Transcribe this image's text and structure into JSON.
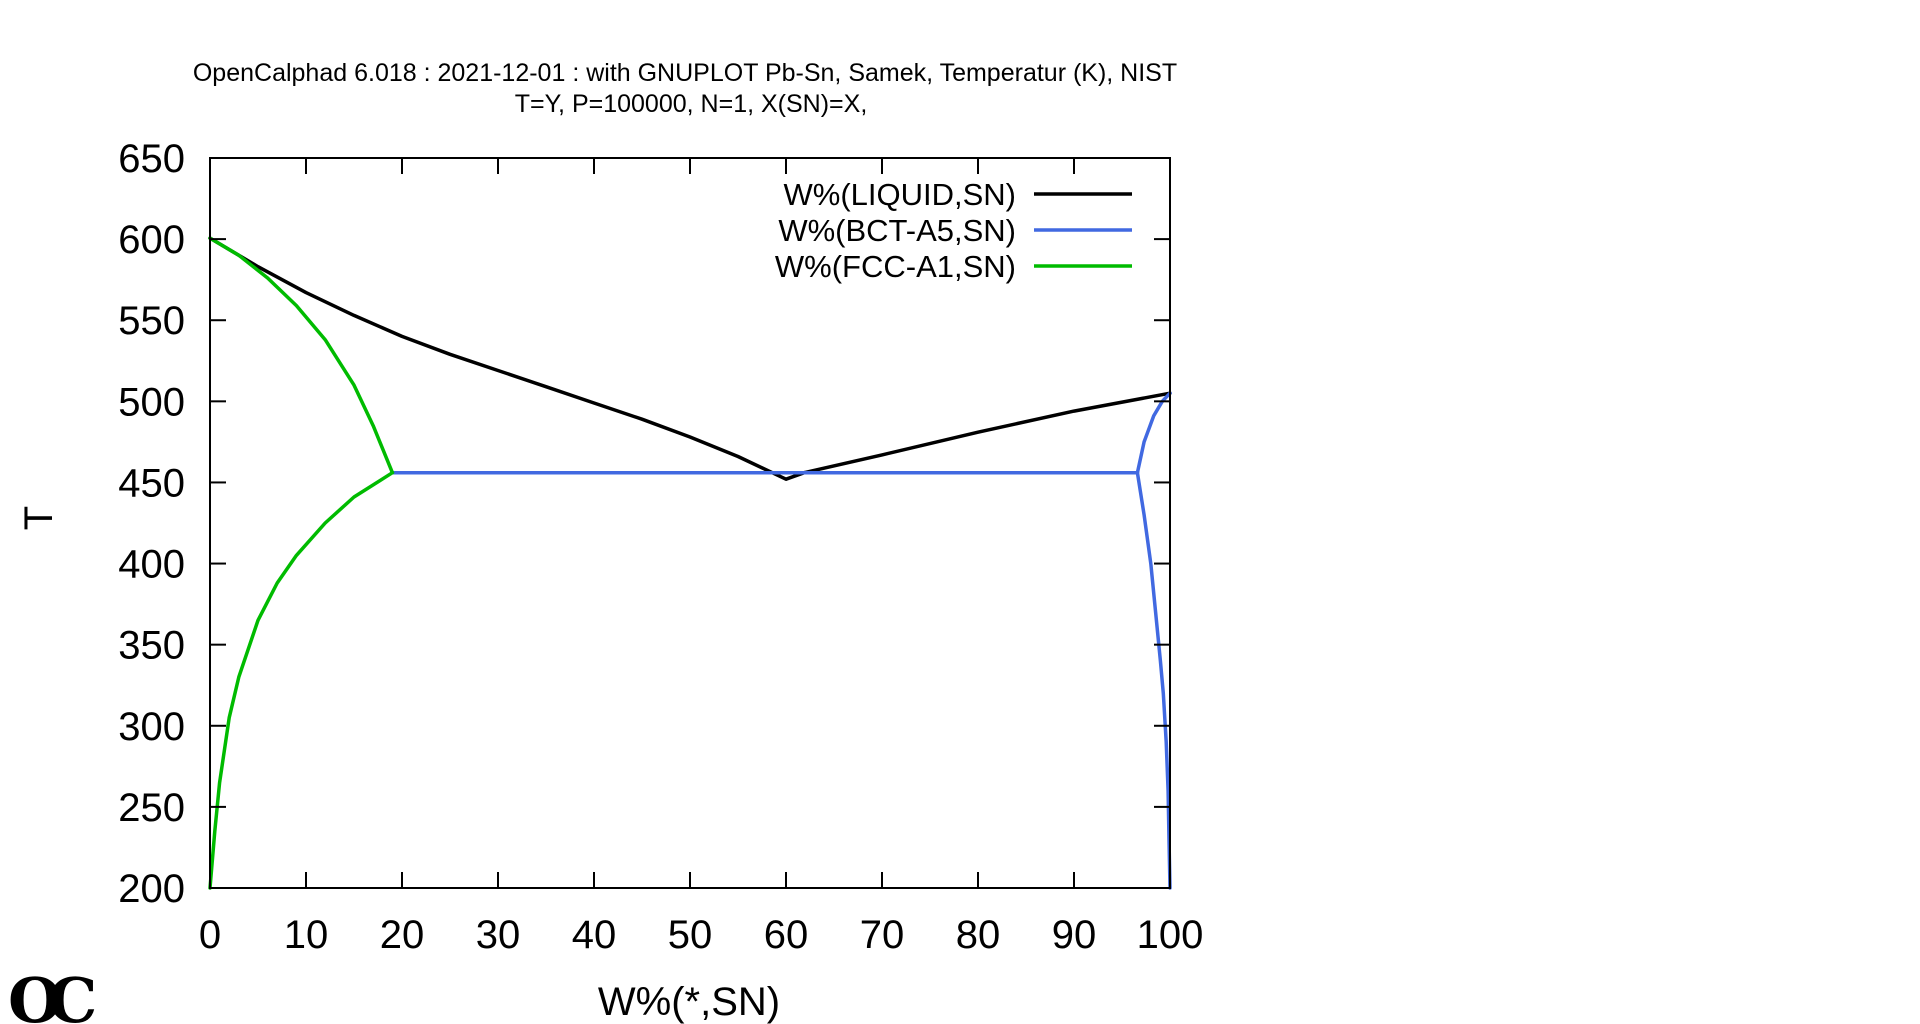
{
  "chart_data": {
    "type": "line",
    "title": "OpenCalphad   6.018 :  2021-12-01 : with GNUPLOT Pb-Sn, Samek, Temperatur (K), NIST",
    "subtitle": "T=Y,  P=100000, N=1, X(SN)=X,",
    "xlabel": "W%(*,SN)",
    "ylabel": "T",
    "xlim": [
      0,
      100
    ],
    "ylim": [
      200,
      650
    ],
    "xticks": [
      0,
      10,
      20,
      30,
      40,
      50,
      60,
      70,
      80,
      90,
      100
    ],
    "yticks": [
      200,
      250,
      300,
      350,
      400,
      450,
      500,
      550,
      600,
      650
    ],
    "grid": false,
    "legend": "top-right",
    "series": [
      {
        "name": "W%(LIQUID,SN)",
        "color": "#000000",
        "segments": [
          [
            [
              0,
              600.6
            ],
            [
              5,
              583
            ],
            [
              10,
              567
            ],
            [
              15,
              553
            ],
            [
              20,
              540
            ],
            [
              25,
              529
            ],
            [
              30,
              519
            ],
            [
              35,
              509
            ],
            [
              40,
              499
            ],
            [
              45,
              489
            ],
            [
              50,
              478
            ],
            [
              55,
              466
            ],
            [
              60,
              452
            ],
            [
              61.9,
              456
            ]
          ],
          [
            [
              61.9,
              456
            ],
            [
              70,
              467
            ],
            [
              80,
              481
            ],
            [
              90,
              494
            ],
            [
              100,
              505
            ]
          ]
        ]
      },
      {
        "name": "W%(BCT-A5,SN)",
        "color": "#4169e1",
        "segments": [
          [
            [
              19,
              456
            ],
            [
              96.6,
              456
            ]
          ],
          [
            [
              96.6,
              456
            ],
            [
              97.3,
              475
            ],
            [
              98.3,
              491
            ],
            [
              99.2,
              500
            ],
            [
              100,
              505
            ]
          ],
          [
            [
              96.6,
              456
            ],
            [
              97.3,
              430
            ],
            [
              98,
              400
            ],
            [
              98.5,
              370
            ],
            [
              99,
              340
            ],
            [
              99.3,
              320
            ],
            [
              99.6,
              290
            ],
            [
              99.8,
              260
            ],
            [
              99.9,
              230
            ],
            [
              100,
              200
            ]
          ]
        ]
      },
      {
        "name": "W%(FCC-A1,SN)",
        "color": "#00bb00",
        "segments": [
          [
            [
              0,
              600.6
            ],
            [
              3,
              590
            ],
            [
              6,
              576
            ],
            [
              9,
              559
            ],
            [
              12,
              538
            ],
            [
              15,
              510
            ],
            [
              17,
              485
            ],
            [
              19,
              456
            ]
          ],
          [
            [
              19,
              456
            ],
            [
              15,
              441
            ],
            [
              12,
              425
            ],
            [
              9,
              405
            ],
            [
              7,
              388
            ],
            [
              5,
              365
            ],
            [
              3,
              330
            ],
            [
              2,
              305
            ],
            [
              1,
              265
            ],
            [
              0.5,
              235
            ],
            [
              0,
              200
            ]
          ]
        ]
      }
    ]
  },
  "logo": {
    "text": "OC"
  }
}
